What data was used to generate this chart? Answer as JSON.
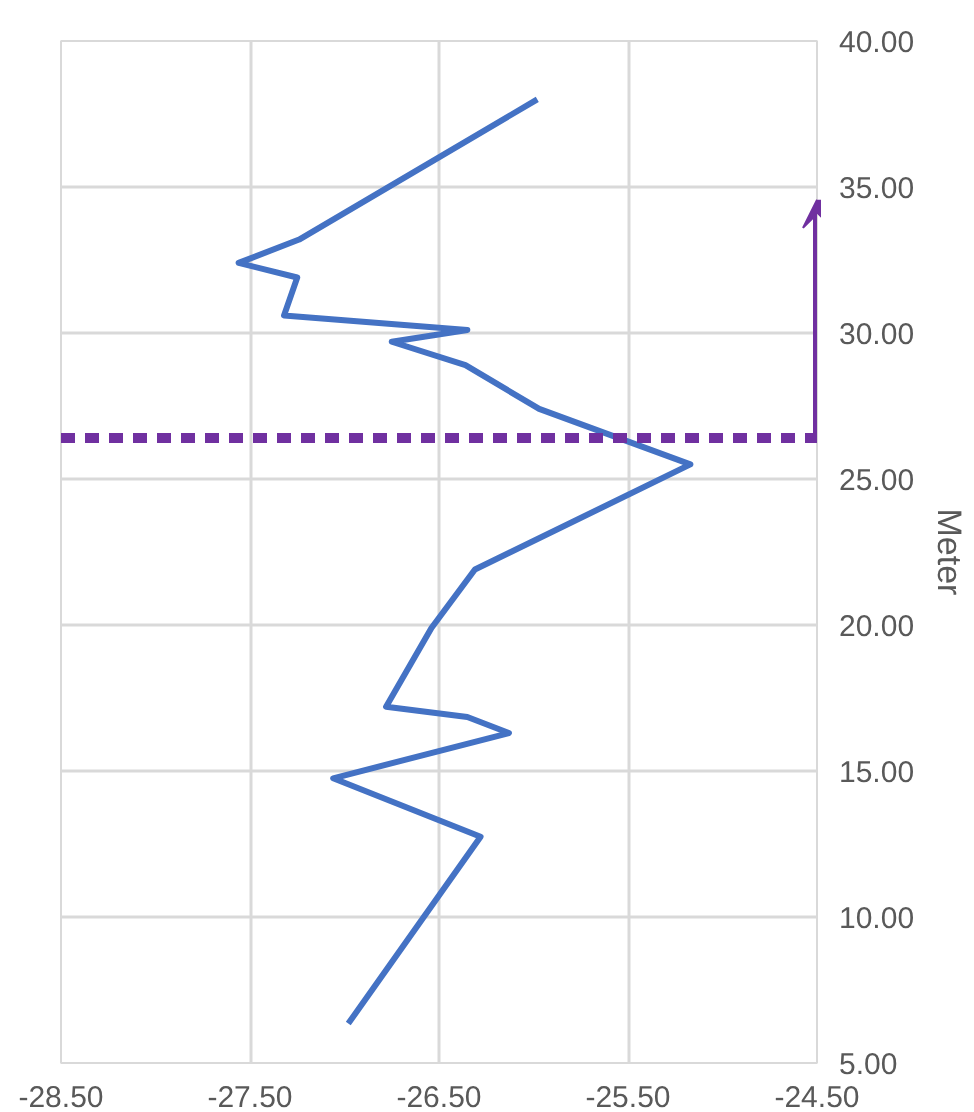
{
  "chart_data": {
    "type": "line",
    "ylabel": "Meter",
    "series": [
      {
        "color": "#4472c4",
        "x": [
          -25.98,
          -27.24,
          -27.56,
          -27.25,
          -27.32,
          -26.35,
          -26.75,
          -26.36,
          -25.97,
          -25.17,
          -26.31,
          -26.54,
          -26.78,
          -26.35,
          -26.13,
          -27.06,
          -26.28,
          -26.98
        ],
        "values": [
          38.0,
          33.2,
          32.4,
          31.9,
          30.6,
          30.1,
          29.7,
          28.9,
          27.4,
          25.5,
          21.9,
          19.9,
          17.2,
          16.85,
          16.3,
          14.75,
          12.75,
          6.35
        ]
      }
    ],
    "xlim": [
      -28.5,
      -24.5
    ],
    "xticks": [
      {
        "value": -28.5,
        "label": "-28.50"
      },
      {
        "value": -27.5,
        "label": "-27.50"
      },
      {
        "value": -26.5,
        "label": "-26.50"
      },
      {
        "value": -25.5,
        "label": "-25.50"
      },
      {
        "value": -24.5,
        "label": "-24.50"
      }
    ],
    "ylim": [
      5,
      40
    ],
    "yticks": [
      {
        "value": 5,
        "label": "5.00"
      },
      {
        "value": 10,
        "label": "10.00"
      },
      {
        "value": 15,
        "label": "15.00"
      },
      {
        "value": 20,
        "label": "20.00"
      },
      {
        "value": 25,
        "label": "25.00"
      },
      {
        "value": 30,
        "label": "30.00"
      },
      {
        "value": 35,
        "label": "35.00"
      },
      {
        "value": 40,
        "label": "40.00"
      }
    ],
    "ref_lines": [
      {
        "axis": "y",
        "value": 26.4,
        "color": "#7030a0",
        "line_style": "dashed"
      }
    ],
    "grid": true,
    "marker": "none",
    "line_style": "solid"
  }
}
